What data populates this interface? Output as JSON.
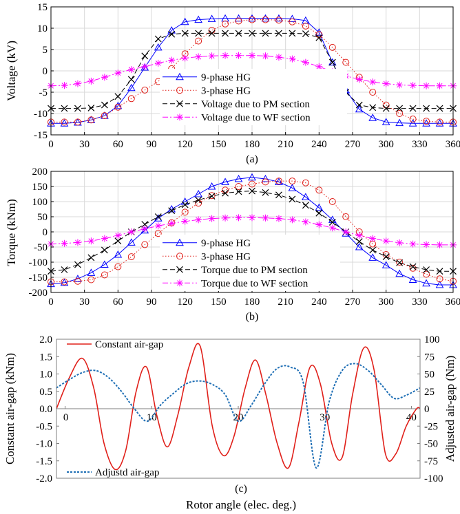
{
  "chart_data": [
    {
      "type": "line",
      "panel_label": "(a)",
      "ylabel": "Voltage (kV)",
      "xlim": [
        0,
        360
      ],
      "ylim": [
        -15,
        15
      ],
      "x_ticks": [
        0,
        30,
        60,
        90,
        120,
        150,
        180,
        210,
        240,
        270,
        300,
        330,
        360
      ],
      "y_ticks": [
        -15,
        -10,
        -5,
        0,
        5,
        10,
        15
      ],
      "grid": true,
      "legend_position": "bottom-center",
      "series": [
        {
          "name": "9-phase HG",
          "color": "#0000ff",
          "style": "solid",
          "marker": "triangle",
          "x": [
            0,
            12,
            24,
            36,
            48,
            60,
            72,
            84,
            96,
            108,
            120,
            132,
            144,
            156,
            168,
            180,
            192,
            204,
            216,
            228,
            240,
            252,
            264,
            276,
            288,
            300,
            312,
            324,
            336,
            348,
            360
          ],
          "y": [
            -12.3,
            -12.3,
            -12.1,
            -11.5,
            -10.5,
            -8.2,
            -4.0,
            0.8,
            5.5,
            9.5,
            11.5,
            12.0,
            12.2,
            12.3,
            12.3,
            12.3,
            12.3,
            12.3,
            12.2,
            11.8,
            9.0,
            2.0,
            -4.5,
            -9.0,
            -11.0,
            -12.0,
            -12.2,
            -12.3,
            -12.3,
            -12.3,
            -12.3
          ]
        },
        {
          "name": "3-phase HG",
          "color": "#e0201a",
          "style": "dotted",
          "marker": "circle",
          "x": [
            0,
            12,
            24,
            36,
            48,
            60,
            72,
            84,
            96,
            108,
            120,
            132,
            144,
            156,
            168,
            180,
            192,
            204,
            216,
            228,
            240,
            252,
            264,
            276,
            288,
            300,
            312,
            324,
            336,
            348,
            360
          ],
          "y": [
            -12.0,
            -12.0,
            -12.0,
            -11.5,
            -10.5,
            -8.5,
            -6.5,
            -4.5,
            -2.5,
            0.5,
            4.0,
            7.0,
            9.5,
            11.0,
            11.7,
            12.0,
            12.0,
            11.9,
            11.5,
            10.5,
            8.5,
            5.5,
            2.0,
            -1.5,
            -5.0,
            -8.0,
            -10.0,
            -11.3,
            -11.8,
            -12.0,
            -12.0
          ]
        },
        {
          "name": "Voltage due to PM section",
          "color": "#000000",
          "style": "dashed",
          "marker": "x",
          "x": [
            0,
            12,
            24,
            36,
            48,
            60,
            72,
            84,
            96,
            108,
            120,
            132,
            144,
            156,
            168,
            180,
            192,
            204,
            216,
            228,
            240,
            252,
            264,
            276,
            288,
            300,
            312,
            324,
            336,
            348,
            360
          ],
          "y": [
            -8.8,
            -8.8,
            -8.8,
            -8.7,
            -8.0,
            -6.0,
            -2.0,
            3.5,
            7.5,
            8.6,
            8.8,
            8.8,
            8.8,
            8.8,
            8.8,
            8.8,
            8.8,
            8.8,
            8.8,
            8.7,
            7.8,
            2.0,
            -5.0,
            -8.0,
            -8.6,
            -8.8,
            -8.8,
            -8.8,
            -8.8,
            -8.8,
            -8.8
          ]
        },
        {
          "name": "Voltage due to WF section",
          "color": "#ff00ff",
          "style": "dashdot",
          "marker": "star",
          "x": [
            0,
            12,
            24,
            36,
            48,
            60,
            72,
            84,
            96,
            108,
            120,
            132,
            144,
            156,
            168,
            180,
            192,
            204,
            216,
            228,
            240,
            252,
            264,
            276,
            288,
            300,
            312,
            324,
            336,
            348,
            360
          ],
          "y": [
            -3.5,
            -3.4,
            -3.0,
            -2.4,
            -1.5,
            -0.5,
            0.3,
            1.0,
            1.8,
            2.5,
            3.0,
            3.3,
            3.5,
            3.6,
            3.6,
            3.6,
            3.5,
            3.2,
            2.8,
            2.0,
            1.0,
            -0.2,
            -1.2,
            -2.0,
            -2.6,
            -3.0,
            -3.3,
            -3.4,
            -3.5,
            -3.5,
            -3.5
          ]
        }
      ]
    },
    {
      "type": "line",
      "panel_label": "(b)",
      "ylabel": "Torque (kNm)",
      "xlim": [
        0,
        360
      ],
      "ylim": [
        -200,
        200
      ],
      "x_ticks": [
        0,
        30,
        60,
        90,
        120,
        150,
        180,
        210,
        240,
        270,
        300,
        330,
        360
      ],
      "y_ticks": [
        -200,
        -150,
        -100,
        -50,
        0,
        50,
        100,
        150,
        200
      ],
      "grid": true,
      "legend_position": "bottom-center",
      "series": [
        {
          "name": "9-phase HG",
          "color": "#0000ff",
          "style": "solid",
          "marker": "triangle",
          "x": [
            0,
            12,
            24,
            36,
            48,
            60,
            72,
            84,
            96,
            108,
            120,
            132,
            144,
            156,
            168,
            180,
            192,
            204,
            216,
            228,
            240,
            252,
            264,
            276,
            288,
            300,
            312,
            324,
            336,
            348,
            360
          ],
          "y": [
            -172,
            -168,
            -155,
            -135,
            -108,
            -75,
            -35,
            5,
            45,
            75,
            100,
            125,
            150,
            165,
            175,
            180,
            175,
            165,
            145,
            115,
            80,
            40,
            -5,
            -50,
            -85,
            -110,
            -138,
            -158,
            -170,
            -175,
            -175
          ]
        },
        {
          "name": "3-phase HG",
          "color": "#e0201a",
          "style": "dotted",
          "marker": "circle",
          "x": [
            0,
            12,
            24,
            36,
            48,
            60,
            72,
            84,
            96,
            108,
            120,
            132,
            144,
            156,
            168,
            180,
            192,
            204,
            216,
            228,
            240,
            252,
            264,
            276,
            288,
            300,
            312,
            324,
            336,
            348,
            360
          ],
          "y": [
            -165,
            -165,
            -163,
            -158,
            -142,
            -115,
            -82,
            -42,
            -5,
            30,
            65,
            95,
            120,
            138,
            150,
            158,
            165,
            168,
            168,
            162,
            138,
            100,
            50,
            0,
            -40,
            -75,
            -100,
            -120,
            -140,
            -155,
            -163
          ]
        },
        {
          "name": "Torque due to PM section",
          "color": "#000000",
          "style": "dashed",
          "marker": "x",
          "x": [
            0,
            12,
            24,
            36,
            48,
            60,
            72,
            84,
            96,
            108,
            120,
            132,
            144,
            156,
            168,
            180,
            192,
            204,
            216,
            228,
            240,
            252,
            264,
            276,
            288,
            300,
            312,
            324,
            336,
            348,
            360
          ],
          "y": [
            -130,
            -125,
            -108,
            -85,
            -60,
            -30,
            0,
            25,
            50,
            70,
            90,
            105,
            118,
            128,
            133,
            135,
            130,
            122,
            108,
            88,
            62,
            32,
            0,
            -32,
            -60,
            -82,
            -102,
            -115,
            -125,
            -130,
            -130
          ]
        },
        {
          "name": "Torque due to WF section",
          "color": "#ff00ff",
          "style": "dashdot",
          "marker": "star",
          "x": [
            0,
            12,
            24,
            36,
            48,
            60,
            72,
            84,
            96,
            108,
            120,
            132,
            144,
            156,
            168,
            180,
            192,
            204,
            216,
            228,
            240,
            252,
            264,
            276,
            288,
            300,
            312,
            324,
            336,
            348,
            360
          ],
          "y": [
            -40,
            -38,
            -35,
            -30,
            -22,
            -12,
            0,
            10,
            20,
            28,
            35,
            40,
            44,
            46,
            47,
            47,
            46,
            44,
            40,
            33,
            24,
            13,
            0,
            -12,
            -22,
            -30,
            -36,
            -40,
            -42,
            -43,
            -43
          ]
        }
      ]
    },
    {
      "type": "line",
      "panel_label": "(c)",
      "xlabel": "Rotor angle (elec. deg.)",
      "ylabel": "Constant air-gap (kNm)",
      "ylabel_right": "Adjusted air-gap (Nm)",
      "xlim": [
        -1,
        41
      ],
      "ylim": [
        -2.0,
        2.0
      ],
      "ylim_right": [
        -100,
        100
      ],
      "x_ticks": [
        0,
        10,
        20,
        30,
        40
      ],
      "y_ticks": [
        -2.0,
        -1.5,
        -1.0,
        -0.5,
        0.0,
        0.5,
        1.0,
        1.5,
        2.0
      ],
      "y_ticks_right": [
        -100,
        -75,
        -50,
        -25,
        0,
        25,
        50,
        75,
        100
      ],
      "grid": false,
      "series": [
        {
          "name": "Constant air-gap",
          "axis": "left",
          "color": "#e0201a",
          "style": "solid",
          "x": [
            -1.0,
            0.5,
            2.0,
            3.3,
            4.5,
            5.8,
            7.0,
            8.2,
            9.4,
            10.6,
            11.8,
            13.0,
            14.3,
            15.6,
            17.0,
            18.3,
            19.5,
            20.8,
            22.0,
            23.2,
            24.5,
            25.8,
            27.0,
            28.3,
            29.5,
            30.8,
            32.0,
            33.2,
            34.5,
            35.7,
            37.0,
            38.2,
            39.4,
            40.6,
            41.0
          ],
          "y": [
            0.0,
            0.9,
            1.45,
            0.6,
            -1.0,
            -1.75,
            -1.2,
            0.5,
            1.2,
            -0.2,
            -1.1,
            -0.2,
            1.2,
            1.8,
            -0.5,
            -1.35,
            -0.8,
            0.6,
            1.4,
            0.4,
            -1.0,
            -1.7,
            -0.4,
            1.2,
            0.7,
            -1.0,
            -1.4,
            0.4,
            1.75,
            1.1,
            -1.3,
            -1.3,
            -0.5,
            0.0,
            0.0
          ]
        },
        {
          "name": "Adjustd air-gap",
          "axis": "right",
          "color": "#1f6fb5",
          "style": "dashed",
          "x": [
            -1.0,
            0.5,
            2.0,
            3.5,
            5.0,
            6.5,
            8.0,
            9.5,
            11.0,
            12.5,
            14.0,
            15.5,
            17.0,
            18.5,
            20.0,
            21.5,
            23.0,
            24.5,
            26.0,
            27.5,
            29.0,
            30.5,
            32.0,
            33.5,
            35.0,
            36.5,
            38.0,
            39.5,
            41.0
          ],
          "y": [
            30,
            42,
            52,
            55,
            45,
            25,
            0,
            -18,
            5,
            22,
            36,
            40,
            35,
            20,
            -18,
            5,
            35,
            58,
            60,
            38,
            -85,
            10,
            55,
            65,
            55,
            35,
            15,
            20,
            30
          ]
        }
      ]
    }
  ]
}
